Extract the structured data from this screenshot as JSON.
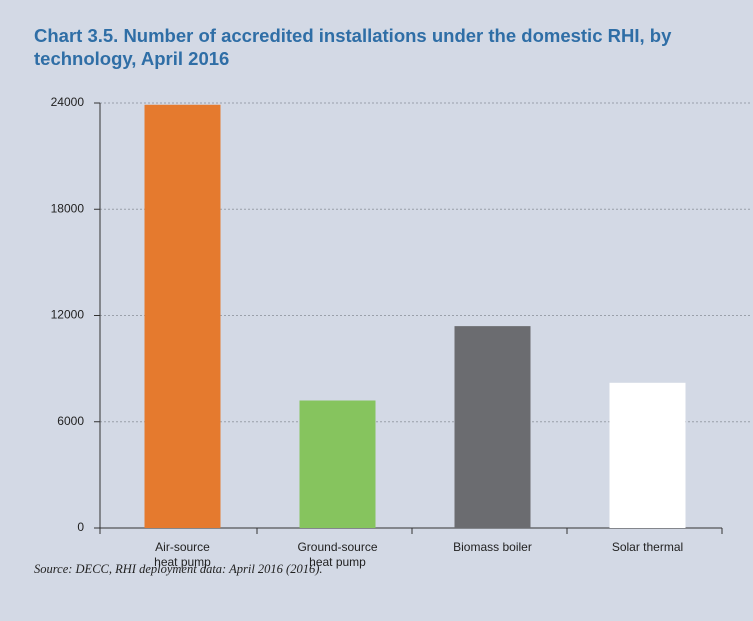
{
  "chart_data": {
    "type": "bar",
    "title": "Chart 3.5. Number of accredited installations under the domestic RHI, by technology, April 2016",
    "categories": [
      "Air-source\nheat pump",
      "Ground-source\nheat pump",
      "Biomass boiler",
      "Solar thermal"
    ],
    "values": [
      23900,
      7200,
      11400,
      8200
    ],
    "colors": [
      "#e57a2e",
      "#86c45e",
      "#6b6c70",
      "#ffffff"
    ],
    "ylim": [
      0,
      24000
    ],
    "yticks": [
      0,
      6000,
      12000,
      18000,
      24000
    ],
    "grid": true,
    "source": "Source: DECC, RHI deployment data: April 2016 (2016)."
  }
}
